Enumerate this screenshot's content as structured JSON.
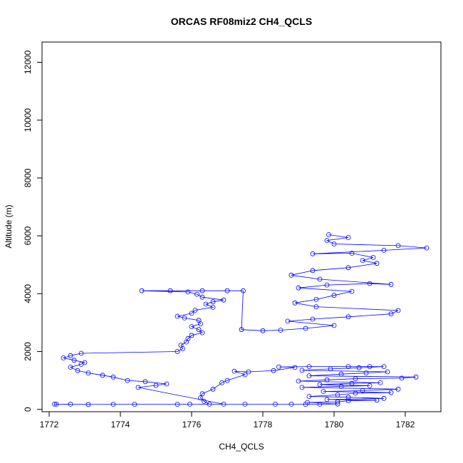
{
  "chart_data": {
    "type": "line",
    "title": "ORCAS RF08miz2 CH4_QCLS",
    "xlabel": "CH4_QCLS",
    "ylabel": "Altitude (m)",
    "xlim": [
      1771.8,
      1783.0
    ],
    "ylim": [
      -80,
      12700
    ],
    "x_ticks": [
      1772,
      1774,
      1776,
      1778,
      1780,
      1782
    ],
    "y_ticks": [
      0,
      2000,
      4000,
      6000,
      8000,
      10000,
      12000
    ],
    "grid": false,
    "legend": "none",
    "series": [
      {
        "color": "#0000ff",
        "marker": "open-circle",
        "line": "solid",
        "points": [
          [
            1772.15,
            180
          ],
          [
            1772.6,
            180
          ],
          [
            1772.2,
            180
          ],
          [
            1773.1,
            170
          ],
          [
            1773.8,
            175
          ],
          [
            1774.4,
            175
          ],
          [
            1775.6,
            175
          ],
          [
            1775.95,
            180
          ],
          [
            1777.5,
            180
          ],
          [
            1778.35,
            180
          ],
          [
            1778.8,
            180
          ],
          [
            1779.2,
            175
          ],
          [
            1779.6,
            180
          ],
          [
            1780.1,
            185
          ],
          [
            1779.25,
            240
          ],
          [
            1780.1,
            260
          ],
          [
            1780.4,
            300
          ],
          [
            1781.2,
            320
          ],
          [
            1779.8,
            340
          ],
          [
            1781.4,
            380
          ],
          [
            1780.4,
            420
          ],
          [
            1779.3,
            450
          ],
          [
            1780.1,
            500
          ],
          [
            1780.6,
            560
          ],
          [
            1781.6,
            580
          ],
          [
            1779.7,
            620
          ],
          [
            1780.8,
            650
          ],
          [
            1781.8,
            700
          ],
          [
            1779.1,
            760
          ],
          [
            1780.2,
            800
          ],
          [
            1781.0,
            820
          ],
          [
            1779.6,
            860
          ],
          [
            1780.5,
            900
          ],
          [
            1781.3,
            920
          ],
          [
            1779.0,
            980
          ],
          [
            1779.8,
            1020
          ],
          [
            1780.6,
            1060
          ],
          [
            1781.9,
            1080
          ],
          [
            1782.3,
            1120
          ],
          [
            1779.3,
            1160
          ],
          [
            1780.2,
            1220
          ],
          [
            1780.9,
            1260
          ],
          [
            1781.5,
            1300
          ],
          [
            1779.1,
            1350
          ],
          [
            1779.9,
            1400
          ],
          [
            1780.7,
            1440
          ],
          [
            1781.4,
            1480
          ],
          [
            1780.4,
            1480
          ],
          [
            1781.0,
            1480
          ],
          [
            1779.3,
            1480
          ],
          [
            1778.45,
            1470
          ],
          [
            1778.9,
            1450
          ],
          [
            1778.3,
            1340
          ],
          [
            1777.6,
            1300
          ],
          [
            1777.2,
            1320
          ],
          [
            1777.5,
            1200
          ],
          [
            1777.0,
            1000
          ],
          [
            1776.85,
            920
          ],
          [
            1776.6,
            700
          ],
          [
            1776.3,
            540
          ],
          [
            1776.25,
            400
          ],
          [
            1776.35,
            280
          ],
          [
            1776.5,
            180
          ],
          [
            1776.9,
            180
          ],
          [
            1774.5,
            760
          ],
          [
            1775.0,
            830
          ],
          [
            1775.3,
            880
          ],
          [
            1774.7,
            960
          ],
          [
            1774.2,
            1000
          ],
          [
            1773.8,
            1120
          ],
          [
            1773.5,
            1180
          ],
          [
            1773.1,
            1260
          ],
          [
            1772.8,
            1340
          ],
          [
            1772.6,
            1460
          ],
          [
            1772.9,
            1560
          ],
          [
            1773.0,
            1620
          ],
          [
            1772.7,
            1700
          ],
          [
            1772.4,
            1780
          ],
          [
            1772.6,
            1860
          ],
          [
            1772.9,
            1940
          ],
          [
            1775.6,
            2000
          ],
          [
            1775.75,
            2100
          ],
          [
            1775.7,
            2220
          ],
          [
            1775.85,
            2330
          ],
          [
            1775.9,
            2450
          ],
          [
            1776.0,
            2560
          ],
          [
            1776.3,
            2650
          ],
          [
            1776.2,
            2760
          ],
          [
            1776.0,
            2860
          ],
          [
            1776.25,
            2960
          ],
          [
            1776.2,
            3080
          ],
          [
            1775.8,
            3160
          ],
          [
            1775.6,
            3220
          ],
          [
            1776.0,
            3320
          ],
          [
            1776.1,
            3430
          ],
          [
            1776.6,
            3530
          ],
          [
            1776.4,
            3640
          ],
          [
            1776.6,
            3720
          ],
          [
            1776.9,
            3780
          ],
          [
            1776.3,
            3880
          ],
          [
            1776.15,
            3980
          ],
          [
            1775.9,
            4060
          ],
          [
            1774.6,
            4100
          ],
          [
            1775.4,
            4100
          ],
          [
            1776.3,
            4100
          ],
          [
            1777.0,
            4100
          ],
          [
            1777.45,
            4100
          ],
          [
            1777.4,
            2760
          ],
          [
            1778.0,
            2720
          ],
          [
            1778.5,
            2740
          ],
          [
            1779.2,
            2800
          ],
          [
            1780.0,
            2900
          ],
          [
            1778.7,
            3050
          ],
          [
            1779.4,
            3120
          ],
          [
            1780.4,
            3200
          ],
          [
            1781.6,
            3300
          ],
          [
            1781.8,
            3420
          ],
          [
            1779.5,
            3550
          ],
          [
            1778.9,
            3680
          ],
          [
            1779.5,
            3800
          ],
          [
            1780.0,
            3940
          ],
          [
            1780.5,
            4080
          ],
          [
            1779.0,
            4200
          ],
          [
            1779.8,
            4300
          ],
          [
            1781.0,
            4350
          ],
          [
            1781.6,
            4320
          ],
          [
            1779.6,
            4500
          ],
          [
            1778.8,
            4640
          ],
          [
            1779.4,
            4800
          ],
          [
            1780.4,
            4900
          ],
          [
            1781.2,
            5050
          ],
          [
            1780.8,
            5150
          ],
          [
            1781.1,
            5250
          ],
          [
            1780.5,
            5400
          ],
          [
            1779.4,
            5380
          ],
          [
            1781.4,
            5500
          ],
          [
            1782.6,
            5580
          ],
          [
            1781.8,
            5660
          ],
          [
            1780.0,
            5720
          ],
          [
            1779.8,
            5840
          ],
          [
            1780.4,
            5940
          ],
          [
            1779.85,
            6040
          ]
        ]
      }
    ]
  }
}
